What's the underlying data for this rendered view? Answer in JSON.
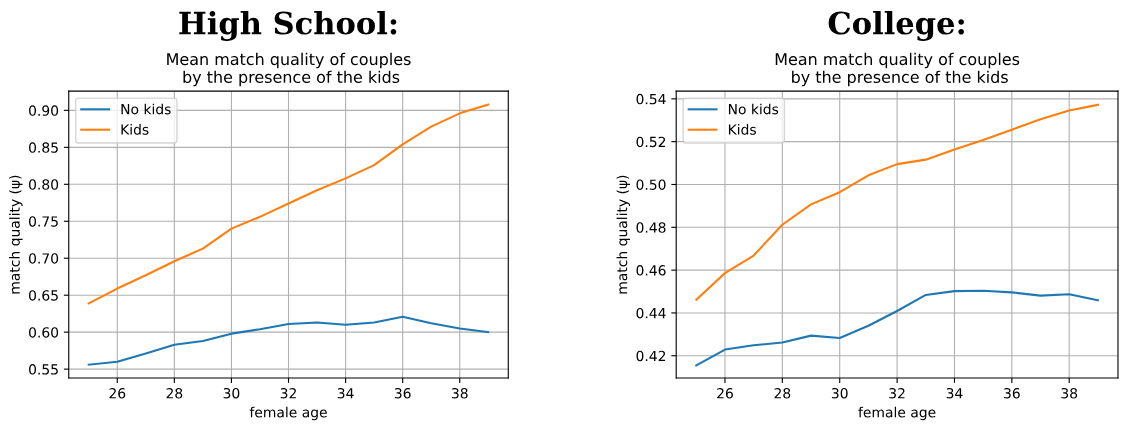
{
  "chart_data": [
    {
      "type": "line",
      "title": "High School:",
      "subtitle": "Mean match quality of couples\n by the presence of the kids",
      "xlabel": "female age",
      "ylabel": "match quality (ψ)",
      "x": [
        25,
        26,
        27,
        28,
        29,
        30,
        31,
        32,
        33,
        34,
        35,
        36,
        37,
        38,
        39
      ],
      "series": [
        {
          "name": "No kids",
          "color": "#1f77b4",
          "values": [
            0.556,
            0.56,
            0.571,
            0.583,
            0.588,
            0.598,
            0.604,
            0.611,
            0.613,
            0.61,
            0.613,
            0.621,
            0.612,
            0.605,
            0.6
          ]
        },
        {
          "name": "Kids",
          "color": "#ff7f0e",
          "values": [
            0.639,
            0.659,
            0.677,
            0.696,
            0.713,
            0.74,
            0.756,
            0.774,
            0.792,
            0.808,
            0.826,
            0.854,
            0.878,
            0.896,
            0.908
          ]
        }
      ],
      "xlim": [
        24.3,
        39.7
      ],
      "xticks": [
        26,
        28,
        30,
        32,
        34,
        36,
        38
      ],
      "ylim": [
        0.538,
        0.926
      ],
      "yticks": [
        {
          "value": 0.55,
          "label": "0.55"
        },
        {
          "value": 0.6,
          "label": "0.60"
        },
        {
          "value": 0.65,
          "label": "0.65"
        },
        {
          "value": 0.7,
          "label": "0.70"
        },
        {
          "value": 0.75,
          "label": "0.75"
        },
        {
          "value": 0.8,
          "label": "0.80"
        },
        {
          "value": 0.85,
          "label": "0.85"
        },
        {
          "value": 0.9,
          "label": "0.90"
        }
      ],
      "grid": true,
      "legend": "top left",
      "line_style": "solid",
      "marker": "none"
    },
    {
      "type": "line",
      "title": "College:",
      "subtitle": "Mean match quality of couples\n by the presence of the kids",
      "xlabel": "female age",
      "ylabel": "match quality (ψ)",
      "x": [
        25,
        26,
        27,
        28,
        29,
        30,
        31,
        32,
        33,
        34,
        35,
        36,
        37,
        38,
        39
      ],
      "series": [
        {
          "name": "No kids",
          "color": "#1f77b4",
          "values": [
            0.4155,
            0.4229,
            0.4249,
            0.4262,
            0.4294,
            0.4283,
            0.434,
            0.4409,
            0.4484,
            0.4502,
            0.4504,
            0.4496,
            0.4481,
            0.4487,
            0.4459
          ]
        },
        {
          "name": "Kids",
          "color": "#ff7f0e",
          "values": [
            0.4462,
            0.4586,
            0.4668,
            0.4812,
            0.4907,
            0.4964,
            0.5043,
            0.5095,
            0.5116,
            0.5163,
            0.5208,
            0.5256,
            0.5305,
            0.5346,
            0.5372
          ]
        }
      ],
      "xlim": [
        24.3,
        39.7
      ],
      "xticks": [
        26,
        28,
        30,
        32,
        34,
        36,
        38
      ],
      "ylim": [
        0.4096,
        0.5436
      ],
      "yticks": [
        {
          "value": 0.42,
          "label": "0.42"
        },
        {
          "value": 0.44,
          "label": "0.44"
        },
        {
          "value": 0.46,
          "label": "0.46"
        },
        {
          "value": 0.48,
          "label": "0.48"
        },
        {
          "value": 0.5,
          "label": "0.50"
        },
        {
          "value": 0.52,
          "label": "0.52"
        },
        {
          "value": 0.54,
          "label": "0.54"
        }
      ],
      "grid": true,
      "legend": "top left",
      "line_style": "solid",
      "marker": "none"
    }
  ]
}
